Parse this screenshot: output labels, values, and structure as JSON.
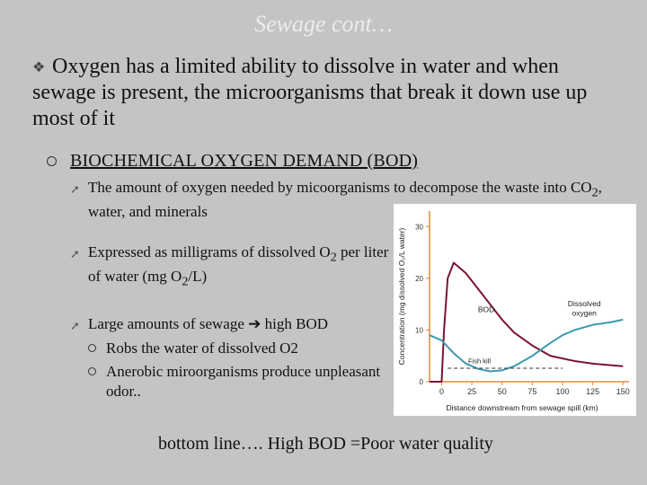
{
  "slide": {
    "title": "Sewage cont…",
    "main_bullet": "Oxygen has a limited ability to dissolve in water and when sewage is present, the microorganisms that break it down use up most of it",
    "bod_heading": "BIOCHEMICAL OXYGEN DEMAND (BOD)",
    "sub1": {
      "pre": "The amount of oxygen needed by micoorganisms to decompose the waste into CO",
      "sub": "2",
      "post": ", water, and minerals"
    },
    "sub2": {
      "a": "Expressed as milligrams of dissolved O",
      "s1": "2",
      "b": " per liter of water (mg O",
      "s2": "2",
      "c": "/L)"
    },
    "sub3": {
      "pre": "Large amounts of sewage ",
      "arrow": "➔",
      "post": " high BOD"
    },
    "subsub1": "Robs the water of dissolved O2",
    "subsub2": "Anerobic miroorganisms produce unpleasant odor..",
    "bottom_line": "bottom line…. High BOD =Poor water quality"
  },
  "icons": {
    "main_bullet": "open-book-icon",
    "sub_bullet": "arrow-icon",
    "heading_bullet": "circle-icon"
  },
  "colors": {
    "bod_curve": "#7a1530",
    "oxygen_curve": "#3b9ab0",
    "axis": "#e08a3a",
    "background": "#c4c4c4"
  },
  "chart_data": {
    "type": "line",
    "xlabel": "Distance downstream from sewage spill (km)",
    "ylabel": "Concentration (mg dissolved O₂/L water)",
    "x_ticks": [
      "0",
      "25",
      "50",
      "75",
      "100",
      "125",
      "150"
    ],
    "y_ticks": [
      "0",
      "10",
      "20",
      "30"
    ],
    "xlim": [
      -10,
      155
    ],
    "ylim": [
      0,
      33
    ],
    "series": [
      {
        "name": "BOD",
        "x": [
          -10,
          -2,
          0,
          2,
          5,
          10,
          20,
          30,
          40,
          50,
          60,
          75,
          90,
          100,
          110,
          125,
          140,
          150
        ],
        "y": [
          0,
          0,
          0,
          10,
          20,
          23,
          21,
          18,
          15,
          12,
          9.5,
          7,
          5,
          4.5,
          4,
          3.5,
          3.2,
          3
        ]
      },
      {
        "name": "Dissolved oxygen",
        "x": [
          -10,
          0,
          10,
          20,
          30,
          40,
          50,
          60,
          75,
          90,
          100,
          110,
          125,
          140,
          150
        ],
        "y": [
          9,
          8,
          5.5,
          3.5,
          2.5,
          2,
          2.2,
          3,
          5,
          7.5,
          9,
          10,
          11,
          11.5,
          12
        ]
      },
      {
        "name": "Fish kill",
        "x": [
          5,
          100
        ],
        "y": [
          2.6,
          2.6
        ]
      }
    ],
    "annotations": {
      "bod": "BOD",
      "oxygen": "Dissolved oxygen",
      "fish_kill": "Fish kill"
    },
    "grid": false
  }
}
